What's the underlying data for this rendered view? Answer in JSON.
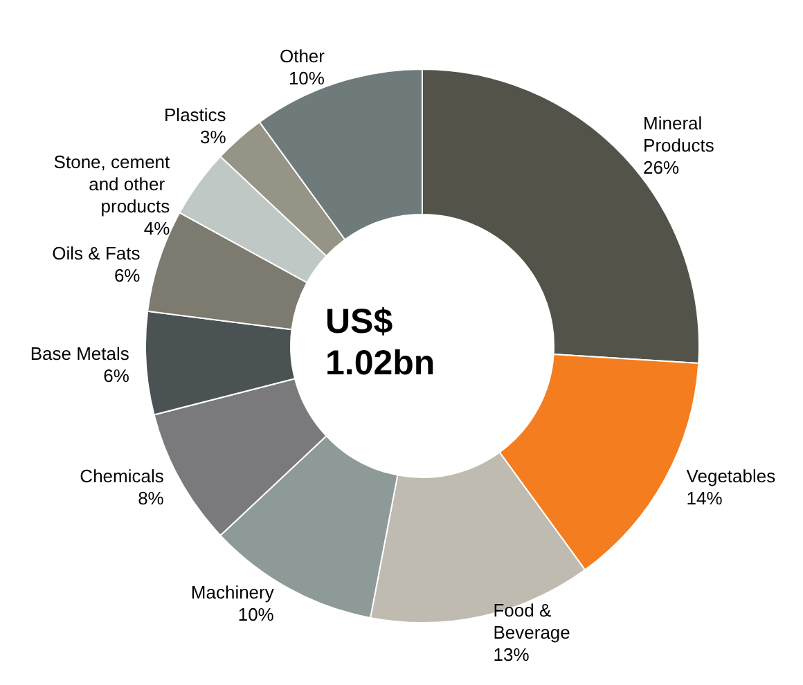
{
  "chart_data": {
    "type": "donut",
    "categories": [
      "Mineral Products",
      "Vegetables",
      "Food & Beverage",
      "Machinery",
      "Chemicals",
      "Base Metals",
      "Oils & Fats",
      "Stone, cement and other products",
      "Plastics",
      "Other"
    ],
    "values": [
      26,
      14,
      13,
      10,
      8,
      6,
      6,
      4,
      3,
      10
    ],
    "value_labels": [
      "26%",
      "14%",
      "13%",
      "10%",
      "8%",
      "6%",
      "6%",
      "4%",
      "3%",
      "10%"
    ],
    "colors": [
      "#545349",
      "#f47d20",
      "#bfbbb0",
      "#8e9a98",
      "#7a797b",
      "#4a5254",
      "#7d7b70",
      "#c0c8c6",
      "#959487",
      "#6f7b7b"
    ],
    "annotations": [
      "US$ 1.02bn"
    ],
    "legend": false
  }
}
